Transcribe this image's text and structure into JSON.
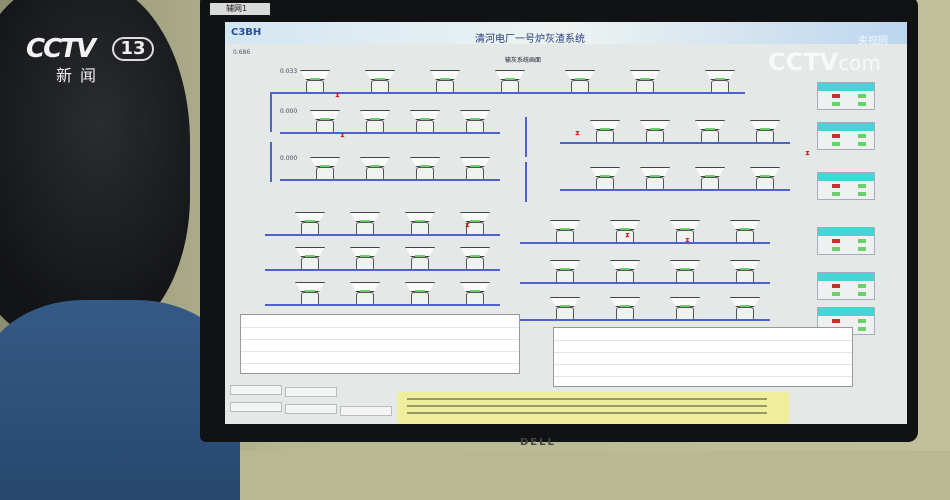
{
  "broadcast": {
    "channel_logo": "CCTV",
    "channel_number": "13",
    "channel_name": "新闻",
    "watermark": "CCTV",
    "watermark_domain": "com",
    "watermark_cn": "央视网"
  },
  "monitor": {
    "tab_label": "辅网1",
    "brand": "DELL"
  },
  "app": {
    "brand": "C3BH",
    "title": "清河电厂一号炉灰渣系统",
    "subtitle": "输灰系统画面",
    "pressure_value": "0.686"
  },
  "line_pressures": [
    "0.033",
    "0.000",
    "0.000"
  ],
  "colors": {
    "header": "#d3e6f2",
    "panel_header": "#44d6d6",
    "lamp_red": "#c8302c",
    "lamp_green": "#6bcf6b",
    "pipe": "#4f62c8",
    "alarm_bg": "#efee9a"
  },
  "status_panels": [
    {
      "lamps": [
        "red",
        "green",
        "green",
        "green"
      ]
    },
    {
      "lamps": [
        "red",
        "green",
        "green",
        "green"
      ]
    },
    {
      "lamps": [
        "red",
        "green",
        "green",
        "green"
      ]
    },
    {
      "lamps": [
        "red",
        "green",
        "green",
        "green"
      ]
    },
    {
      "lamps": [
        "red",
        "green",
        "green",
        "green"
      ]
    },
    {
      "lamps": [
        "red",
        "green",
        "green",
        "green"
      ]
    }
  ]
}
